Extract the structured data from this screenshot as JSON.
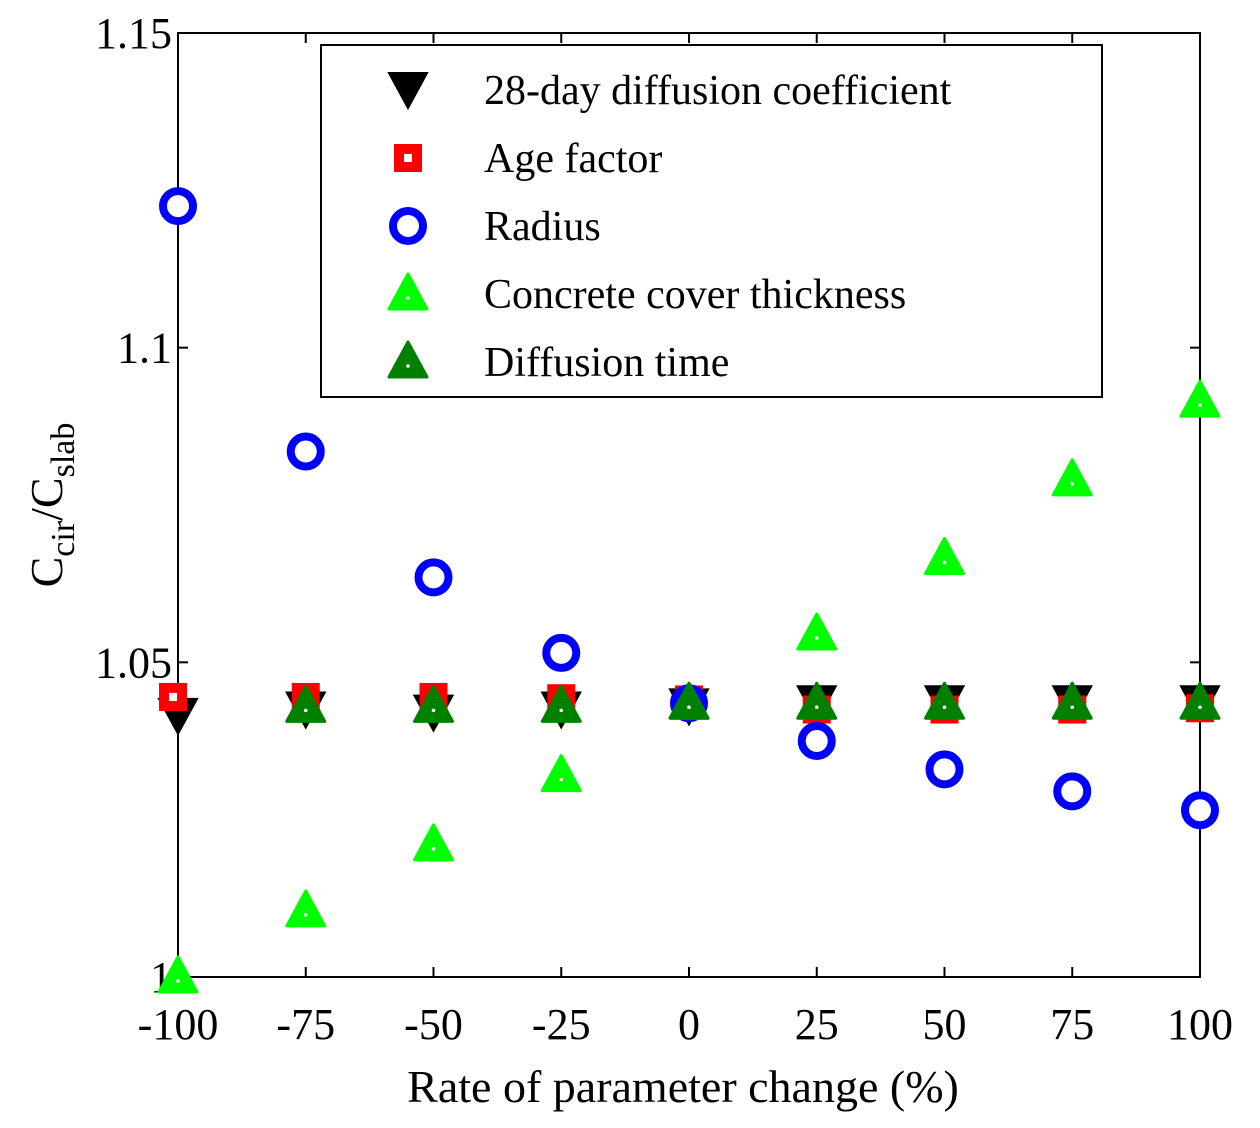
{
  "chart_data": {
    "type": "scatter",
    "title": "",
    "xlabel": "Rate of parameter change (%)",
    "ylabel": {
      "main": "C",
      "sub1": "cir",
      "sep": "/C",
      "sub2": "slab"
    },
    "xlim": [
      -100,
      100
    ],
    "ylim": [
      1.0,
      1.15
    ],
    "xticks": [
      -100,
      -75,
      -50,
      -25,
      0,
      25,
      50,
      75,
      100
    ],
    "xtick_labels": [
      "-100",
      "-75",
      "-50",
      "-25",
      "0",
      "25",
      "50",
      "75",
      "100"
    ],
    "yticks": [
      1.0,
      1.05,
      1.1,
      1.15
    ],
    "ytick_labels": [
      "1",
      "1.05",
      "1.1",
      "1.15"
    ],
    "grid": false,
    "legend_position": "top-right",
    "x": [
      -100,
      -75,
      -50,
      -25,
      0,
      25,
      50,
      75,
      100
    ],
    "series": [
      {
        "name": "28-day diffusion coefficient",
        "marker": "triangle-down",
        "color": "#000000",
        "values": [
          1.0415,
          1.0425,
          1.042,
          1.0425,
          1.043,
          1.0435,
          1.0435,
          1.0435,
          1.0435
        ]
      },
      {
        "name": "Age factor",
        "marker": "square",
        "color": "#ff0000",
        "values": [
          1.0445,
          1.0445,
          1.0445,
          1.0443,
          1.0441,
          1.0425,
          1.0425,
          1.0425,
          1.0427
        ]
      },
      {
        "name": "Radius",
        "marker": "circle",
        "color": "#0000ff",
        "values": [
          1.1225,
          1.0835,
          1.0635,
          1.0515,
          1.0435,
          1.0375,
          1.033,
          1.0295,
          1.0265
        ]
      },
      {
        "name": "Concrete cover thickness",
        "marker": "triangle-up",
        "color": "#00ff00",
        "values": [
          1.0,
          1.0105,
          1.021,
          1.032,
          1.0435,
          1.0545,
          1.0665,
          1.079,
          1.0915
        ]
      },
      {
        "name": "Diffusion time",
        "marker": "triangle-up",
        "color": "#008000",
        "values": [
          null,
          1.043,
          1.043,
          1.043,
          1.0435,
          1.0435,
          1.0435,
          1.0435,
          1.0435
        ]
      }
    ]
  }
}
